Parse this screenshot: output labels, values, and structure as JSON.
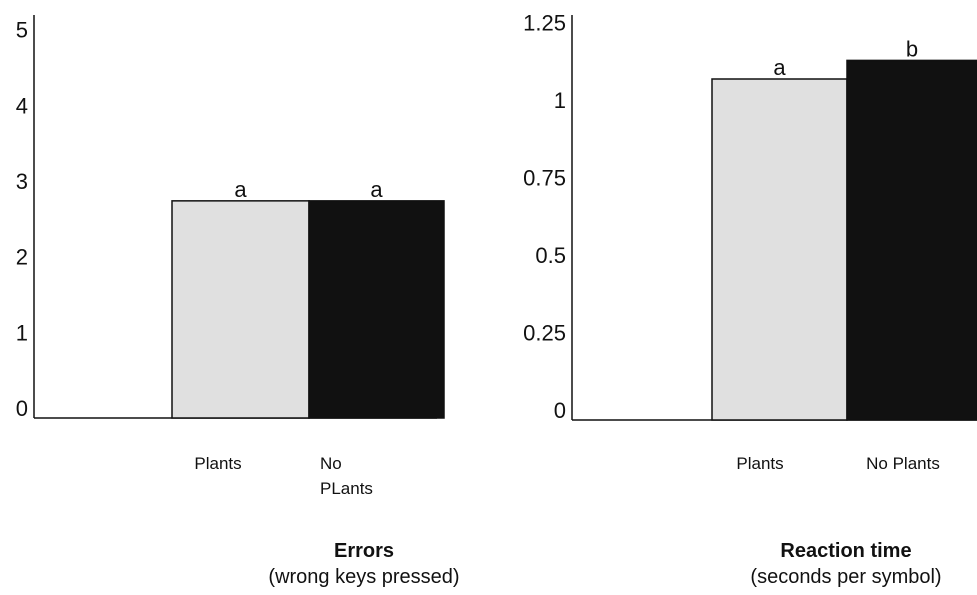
{
  "chart_data": [
    {
      "type": "bar",
      "title": "Errors",
      "subtitle": "(wrong keys pressed)",
      "categories": [
        "Plants",
        "No PLants"
      ],
      "category_lines": [
        [
          "Plants"
        ],
        [
          "No",
          "PLants"
        ]
      ],
      "values": [
        2.87,
        2.87
      ],
      "significance": [
        "a",
        "a"
      ],
      "colors": [
        "#e0e0e0",
        "#111111"
      ],
      "ylim": [
        0,
        5.3
      ],
      "yticks": [
        0,
        1,
        2,
        3,
        4,
        5
      ],
      "ytick_labels": [
        "0",
        "1",
        "2",
        "3",
        "4",
        "5"
      ],
      "grid": false,
      "legend": "none"
    },
    {
      "type": "bar",
      "title": "Reaction time",
      "subtitle": "(seconds per symbol)",
      "categories": [
        "Plants",
        "No Plants"
      ],
      "category_lines": [
        [
          "Plants"
        ],
        [
          "No Plants"
        ]
      ],
      "values": [
        1.1,
        1.16
      ],
      "significance": [
        "a",
        "b"
      ],
      "colors": [
        "#e0e0e0",
        "#111111"
      ],
      "ylim": [
        0,
        1.3
      ],
      "yticks": [
        0,
        0.25,
        0.5,
        0.75,
        1,
        1.25
      ],
      "ytick_labels": [
        "0",
        "0.25",
        "0.5",
        "0.75",
        "1",
        "1.25"
      ],
      "grid": false,
      "legend": "none"
    }
  ]
}
